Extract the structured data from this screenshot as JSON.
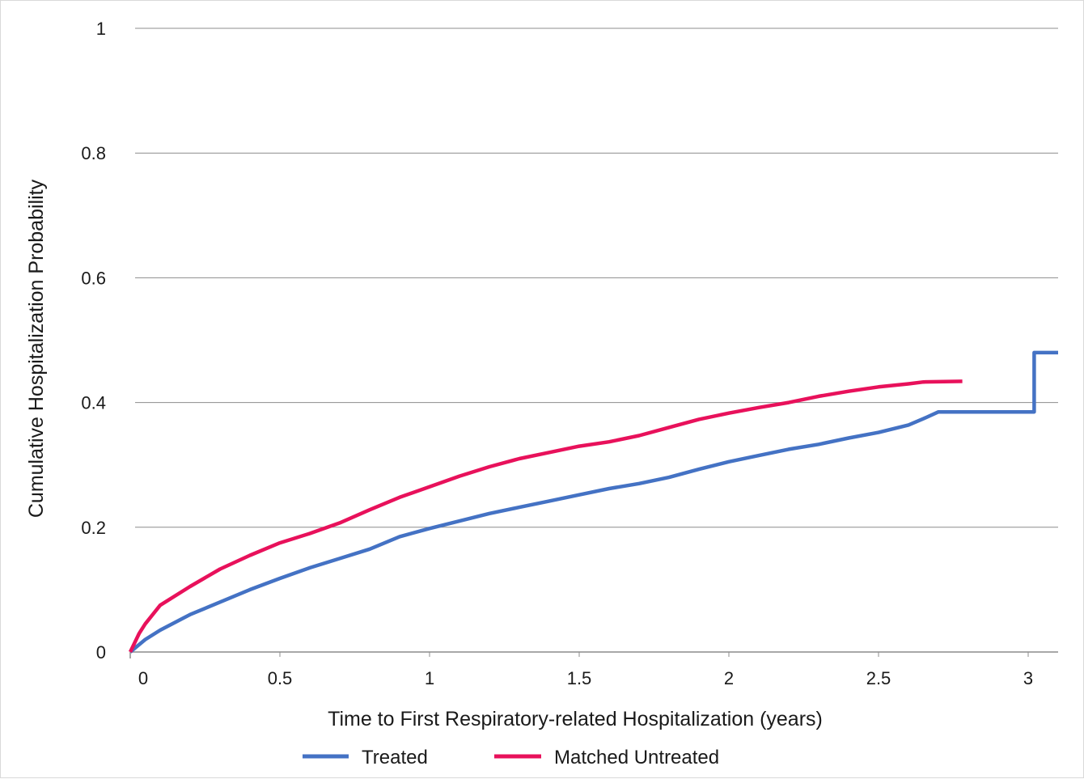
{
  "chart_data": {
    "type": "line",
    "title": "",
    "xlabel": "Time to First Respiratory-related Hospitalization  (years)",
    "ylabel": "Cumulative  Hospitalization  Probability",
    "xlim": [
      0,
      3.1
    ],
    "ylim": [
      0,
      1
    ],
    "x_ticks": [
      "0",
      "0.5",
      "1",
      "1.5",
      "2",
      "2.5",
      "3"
    ],
    "y_ticks": [
      "0",
      "0.2",
      "0.4",
      "0.6",
      "0.8",
      "1"
    ],
    "grid": "horizontal",
    "legend": "bottom",
    "series": [
      {
        "name": "Treated",
        "color": "#4472C4",
        "points": [
          [
            0,
            0
          ],
          [
            0.05,
            0.02
          ],
          [
            0.1,
            0.035
          ],
          [
            0.2,
            0.06
          ],
          [
            0.3,
            0.08
          ],
          [
            0.4,
            0.1
          ],
          [
            0.5,
            0.118
          ],
          [
            0.6,
            0.135
          ],
          [
            0.7,
            0.15
          ],
          [
            0.8,
            0.165
          ],
          [
            0.9,
            0.185
          ],
          [
            1.0,
            0.198
          ],
          [
            1.1,
            0.21
          ],
          [
            1.2,
            0.222
          ],
          [
            1.3,
            0.232
          ],
          [
            1.4,
            0.242
          ],
          [
            1.5,
            0.252
          ],
          [
            1.6,
            0.262
          ],
          [
            1.7,
            0.27
          ],
          [
            1.8,
            0.28
          ],
          [
            1.9,
            0.293
          ],
          [
            2.0,
            0.305
          ],
          [
            2.1,
            0.315
          ],
          [
            2.2,
            0.325
          ],
          [
            2.3,
            0.333
          ],
          [
            2.4,
            0.343
          ],
          [
            2.5,
            0.352
          ],
          [
            2.6,
            0.364
          ],
          [
            2.65,
            0.374
          ],
          [
            2.7,
            0.385
          ],
          [
            3.02,
            0.385
          ],
          [
            3.02,
            0.48
          ],
          [
            3.1,
            0.48
          ]
        ]
      },
      {
        "name": "Matched Untreated",
        "color": "#E8115B",
        "points": [
          [
            0,
            0
          ],
          [
            0.03,
            0.03
          ],
          [
            0.05,
            0.045
          ],
          [
            0.1,
            0.075
          ],
          [
            0.2,
            0.105
          ],
          [
            0.3,
            0.133
          ],
          [
            0.4,
            0.155
          ],
          [
            0.5,
            0.175
          ],
          [
            0.6,
            0.19
          ],
          [
            0.7,
            0.207
          ],
          [
            0.8,
            0.228
          ],
          [
            0.9,
            0.248
          ],
          [
            1.0,
            0.265
          ],
          [
            1.1,
            0.282
          ],
          [
            1.2,
            0.297
          ],
          [
            1.3,
            0.31
          ],
          [
            1.4,
            0.32
          ],
          [
            1.5,
            0.33
          ],
          [
            1.6,
            0.337
          ],
          [
            1.7,
            0.347
          ],
          [
            1.8,
            0.36
          ],
          [
            1.9,
            0.373
          ],
          [
            2.0,
            0.383
          ],
          [
            2.1,
            0.392
          ],
          [
            2.2,
            0.4
          ],
          [
            2.3,
            0.41
          ],
          [
            2.4,
            0.418
          ],
          [
            2.5,
            0.425
          ],
          [
            2.6,
            0.43
          ],
          [
            2.65,
            0.433
          ],
          [
            2.78,
            0.434
          ]
        ]
      }
    ]
  }
}
